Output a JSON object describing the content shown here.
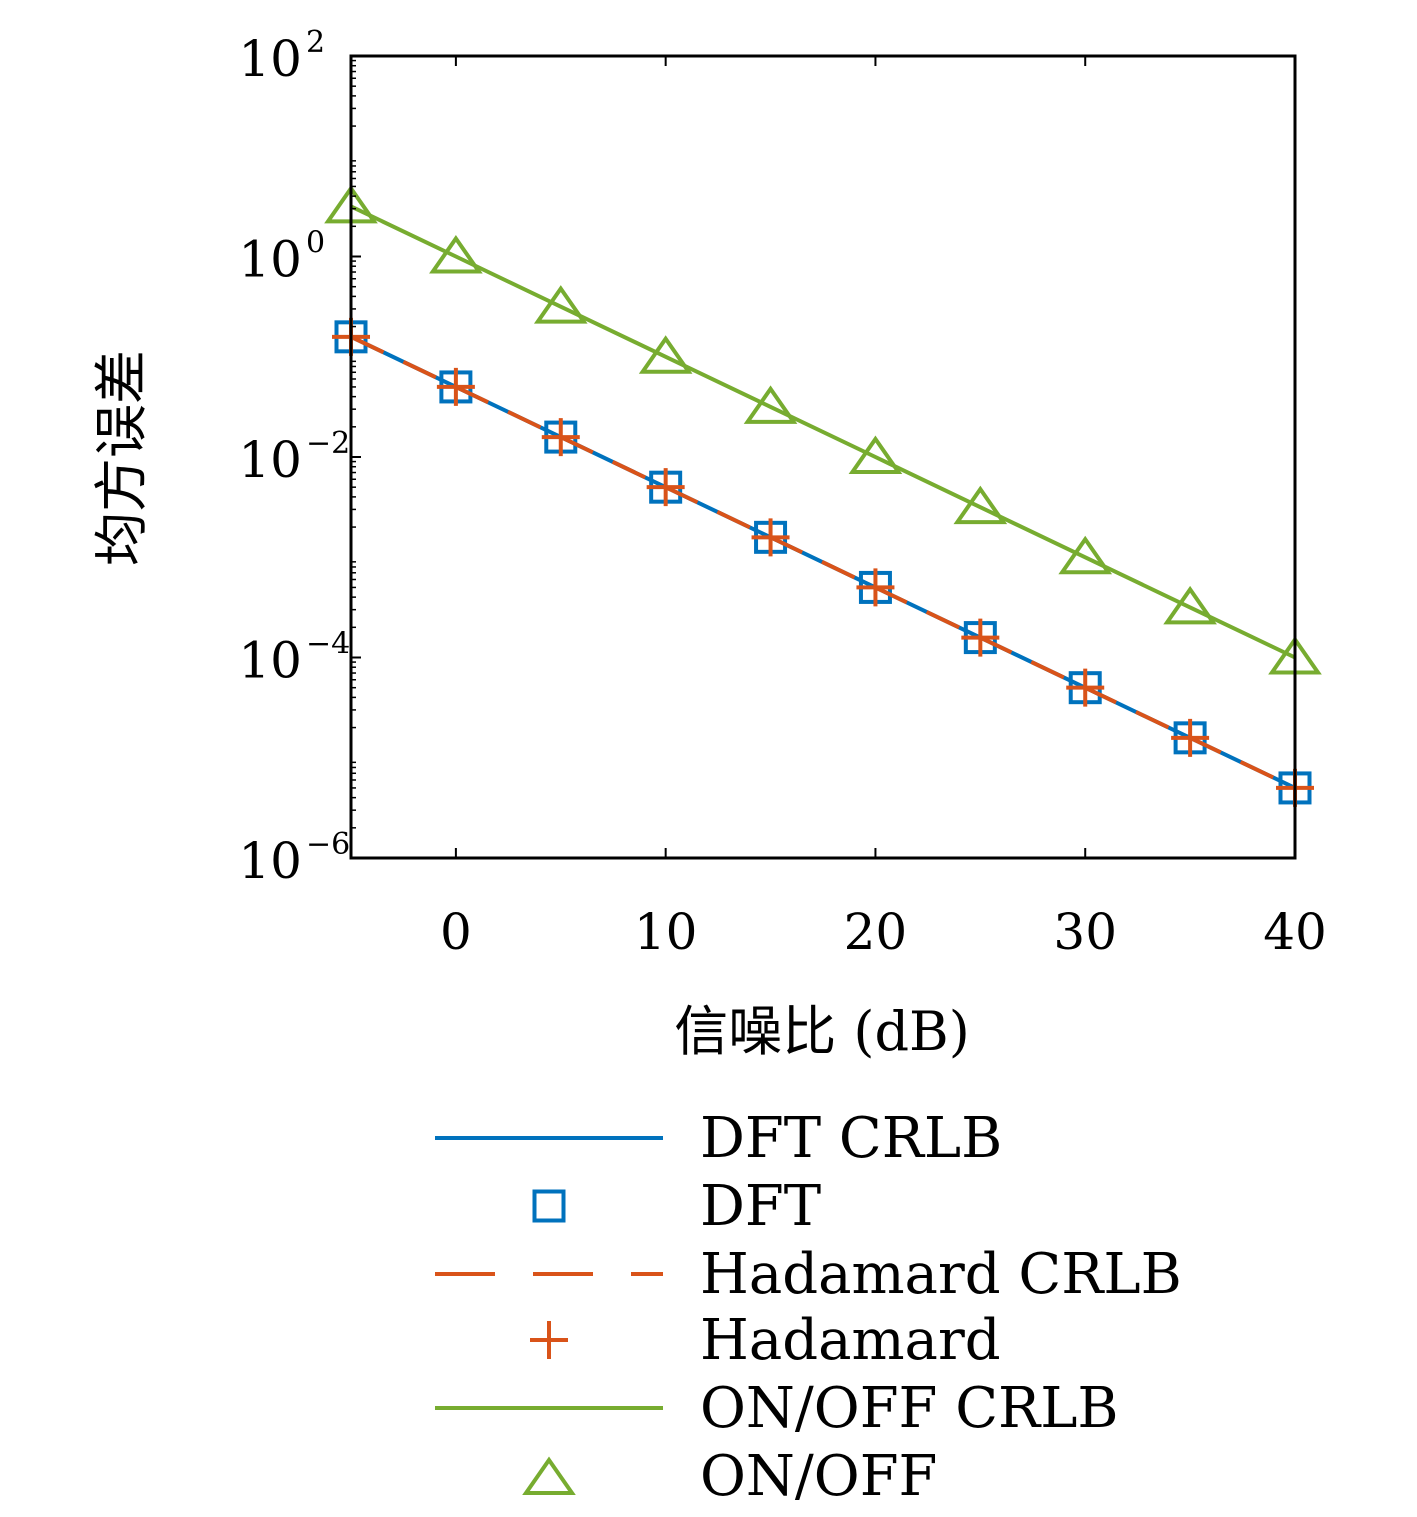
{
  "chart_data": {
    "type": "line",
    "title": "",
    "xlabel": "信噪比 (dB)",
    "ylabel": "均方误差",
    "xlim": [
      -5,
      40
    ],
    "ylim": [
      1e-06,
      100
    ],
    "yscale": "log",
    "grid": false,
    "legend_position": "below",
    "x_ticks": [
      0,
      10,
      20,
      30,
      40
    ],
    "x_tick_labels": [
      "0",
      "10",
      "20",
      "30",
      "40"
    ],
    "y_ticks": [
      1e-06,
      0.0001,
      0.01,
      1,
      100
    ],
    "y_tick_labels": [
      {
        "base": "10",
        "exp": "−6"
      },
      {
        "base": "10",
        "exp": "−4"
      },
      {
        "base": "10",
        "exp": "−2"
      },
      {
        "base": "10",
        "exp": "0"
      },
      {
        "base": "10",
        "exp": "2"
      }
    ],
    "x": [
      -5,
      0,
      5,
      10,
      15,
      20,
      25,
      30,
      35,
      40
    ],
    "series": [
      {
        "name": "DFT CRLB",
        "color": "#0072BD",
        "style": "solid",
        "marker": "none",
        "values": [
          0.158,
          0.05,
          0.0158,
          0.005,
          0.00158,
          0.0005,
          0.000158,
          5e-05,
          1.58e-05,
          5e-06
        ]
      },
      {
        "name": "DFT",
        "color": "#0072BD",
        "style": "none",
        "marker": "square",
        "values": [
          0.158,
          0.05,
          0.0158,
          0.005,
          0.00158,
          0.0005,
          0.000158,
          5e-05,
          1.58e-05,
          5e-06
        ]
      },
      {
        "name": "Hadamard CRLB",
        "color": "#D95319",
        "style": "dashed",
        "marker": "none",
        "values": [
          0.158,
          0.05,
          0.0158,
          0.005,
          0.00158,
          0.0005,
          0.000158,
          5e-05,
          1.58e-05,
          5e-06
        ]
      },
      {
        "name": "Hadamard",
        "color": "#D95319",
        "style": "none",
        "marker": "plus",
        "values": [
          0.158,
          0.05,
          0.0158,
          0.005,
          0.00158,
          0.0005,
          0.000158,
          5e-05,
          1.58e-05,
          5e-06
        ]
      },
      {
        "name": "ON/OFF CRLB",
        "color": "#77AC30",
        "style": "solid",
        "marker": "none",
        "values": [
          3.16,
          1.0,
          0.316,
          0.1,
          0.0316,
          0.01,
          0.00316,
          0.001,
          0.000316,
          0.0001
        ]
      },
      {
        "name": "ON/OFF",
        "color": "#77AC30",
        "style": "none",
        "marker": "triangle",
        "values": [
          3.16,
          1.0,
          0.316,
          0.1,
          0.0316,
          0.01,
          0.00316,
          0.001,
          0.000316,
          0.0001
        ]
      }
    ]
  }
}
